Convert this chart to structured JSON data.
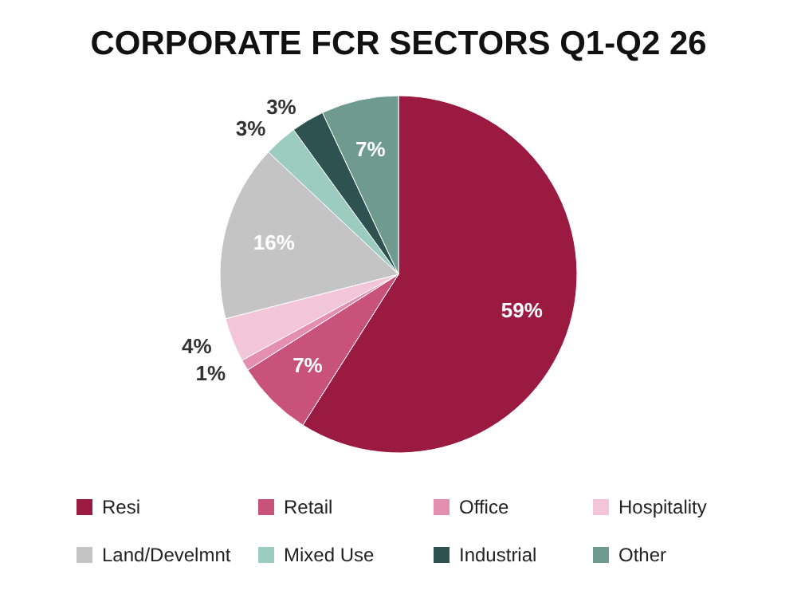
{
  "chart_data": {
    "type": "pie",
    "title": "CORPORATE FCR SECTORS Q1-Q2 26",
    "categories": [
      "Resi",
      "Retail",
      "Office",
      "Hospitality",
      "Land/Develmnt",
      "Mixed Use",
      "Industrial",
      "Other"
    ],
    "values": [
      59,
      7,
      1,
      4,
      16,
      3,
      3,
      7
    ],
    "value_labels": [
      "59%",
      "7%",
      "1%",
      "4%",
      "16%",
      "3%",
      "3%",
      "7%"
    ],
    "colors": [
      "#9b1a42",
      "#c9527a",
      "#e58fb0",
      "#f2c6d6",
      "#c4c4c4",
      "#9cccc0",
      "#2e5250",
      "#6e9a90"
    ],
    "legend": "bottom"
  }
}
